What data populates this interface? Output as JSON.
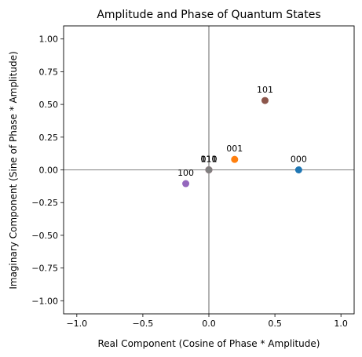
{
  "chart_data": {
    "type": "scatter",
    "title": "Amplitude and Phase of Quantum States",
    "xlabel": "Real Component (Cosine of Phase * Amplitude)",
    "ylabel": "Imaginary Component (Sine of Phase * Amplitude)",
    "xlim": [
      -1.1,
      1.1
    ],
    "ylim": [
      -1.1,
      1.1
    ],
    "x_ticks": [
      "−1.0",
      "−0.5",
      "0.0",
      "0.5",
      "1.0"
    ],
    "x_tick_values": [
      -1.0,
      -0.5,
      0.0,
      0.5,
      1.0
    ],
    "y_ticks": [
      "1.00",
      "0.75",
      "0.50",
      "0.25",
      "0.00",
      "−0.25",
      "−0.50",
      "−0.75",
      "−1.00"
    ],
    "y_tick_values": [
      1.0,
      0.75,
      0.5,
      0.25,
      0.0,
      -0.25,
      -0.5,
      -0.75,
      -1.0
    ],
    "grid": false,
    "reference_lines": {
      "x": 0,
      "y": 0
    },
    "points": [
      {
        "label": "000",
        "x": 0.68,
        "y": 0.0,
        "color": "#1f77b4"
      },
      {
        "label": "001",
        "x": 0.195,
        "y": 0.08,
        "color": "#ff7f0e"
      },
      {
        "label": "010",
        "x": 0.0,
        "y": 0.0,
        "color": "#2ca02c"
      },
      {
        "label": "011",
        "x": 0.0,
        "y": 0.0,
        "color": "#d62728"
      },
      {
        "label": "100",
        "x": -0.175,
        "y": -0.105,
        "color": "#9467bd"
      },
      {
        "label": "101",
        "x": 0.425,
        "y": 0.53,
        "color": "#8c564b"
      },
      {
        "label": "110",
        "x": 0.0,
        "y": 0.0,
        "color": "#e377c2"
      },
      {
        "label": "111",
        "x": 0.0,
        "y": 0.0,
        "color": "#7f7f7f"
      }
    ]
  }
}
